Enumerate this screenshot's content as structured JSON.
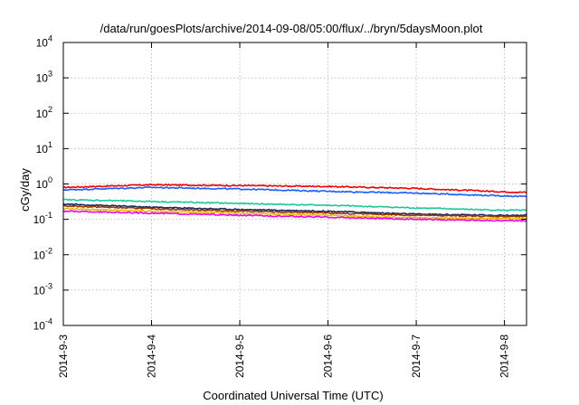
{
  "chart_data": {
    "type": "line",
    "title": "/data/run/goesPlots/archive/2014-09-08/05:00/flux/../bryn/5daysMoon.plot",
    "xlabel": "Coordinated Universal Time (UTC)",
    "ylabel": "cGy/day",
    "y_scale": "log",
    "ylim": [
      0.0001,
      10000
    ],
    "xlim": [
      "2014-9-3",
      "2014-9-8 06:00"
    ],
    "x_tick_labels": [
      "2014-9-3",
      "2014-9-4",
      "2014-9-5",
      "2014-9-6",
      "2014-9-7",
      "2014-9-8"
    ],
    "y_ticks": [
      {
        "base": "10",
        "exp": "-4"
      },
      {
        "base": "10",
        "exp": "-3"
      },
      {
        "base": "10",
        "exp": "-2"
      },
      {
        "base": "10",
        "exp": "-1"
      },
      {
        "base": "10",
        "exp": "0"
      },
      {
        "base": "10",
        "exp": "1"
      },
      {
        "base": "10",
        "exp": "2"
      },
      {
        "base": "10",
        "exp": "3"
      },
      {
        "base": "10",
        "exp": "4"
      }
    ],
    "grid": true,
    "series": [
      {
        "color": "#ee0000",
        "x": [
          "2014-9-3",
          "2014-9-4",
          "2014-9-5",
          "2014-9-6",
          "2014-9-7",
          "2014-9-8",
          "2014-9-8 06:00"
        ],
        "values": [
          0.8,
          0.95,
          0.9,
          0.85,
          0.75,
          0.6,
          0.58
        ]
      },
      {
        "color": "#1a5cff",
        "x": [
          "2014-9-3",
          "2014-9-4",
          "2014-9-5",
          "2014-9-6",
          "2014-9-7",
          "2014-9-8",
          "2014-9-8 06:00"
        ],
        "values": [
          0.68,
          0.8,
          0.72,
          0.62,
          0.55,
          0.46,
          0.44
        ]
      },
      {
        "color": "#1fc79a",
        "x": [
          "2014-9-3",
          "2014-9-4",
          "2014-9-5",
          "2014-9-6",
          "2014-9-7",
          "2014-9-8",
          "2014-9-8 06:00"
        ],
        "values": [
          0.36,
          0.32,
          0.28,
          0.25,
          0.21,
          0.18,
          0.18
        ]
      },
      {
        "color": "#1a2560",
        "x": [
          "2014-9-3",
          "2014-9-4",
          "2014-9-5",
          "2014-9-6",
          "2014-9-7",
          "2014-9-8",
          "2014-9-8 06:00"
        ],
        "values": [
          0.27,
          0.22,
          0.19,
          0.17,
          0.14,
          0.13,
          0.13
        ]
      },
      {
        "color": "#9a3a00",
        "x": [
          "2014-9-3",
          "2014-9-4",
          "2014-9-5",
          "2014-9-6",
          "2014-9-7",
          "2014-9-8",
          "2014-9-8 06:00"
        ],
        "values": [
          0.24,
          0.2,
          0.17,
          0.15,
          0.13,
          0.12,
          0.12
        ]
      },
      {
        "color": "#e6b800",
        "x": [
          "2014-9-3",
          "2014-9-4",
          "2014-9-5",
          "2014-9-6",
          "2014-9-7",
          "2014-9-8",
          "2014-9-8 06:00"
        ],
        "values": [
          0.2,
          0.17,
          0.15,
          0.13,
          0.11,
          0.105,
          0.105
        ]
      },
      {
        "color": "#ee00ee",
        "x": [
          "2014-9-3",
          "2014-9-4",
          "2014-9-5",
          "2014-9-6",
          "2014-9-7",
          "2014-9-8",
          "2014-9-8 06:00"
        ],
        "values": [
          0.17,
          0.15,
          0.13,
          0.115,
          0.1,
          0.092,
          0.09
        ]
      }
    ]
  }
}
